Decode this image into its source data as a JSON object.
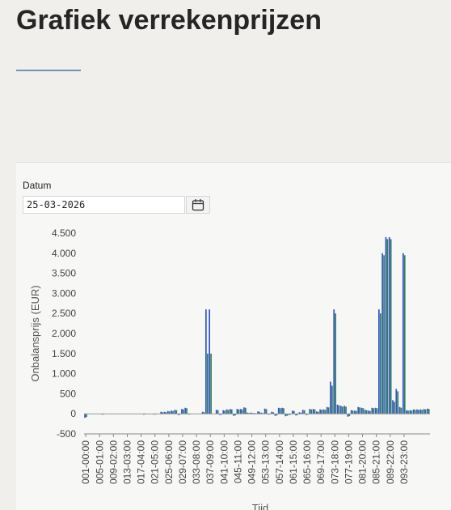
{
  "page": {
    "title": "Grafiek verrekenprijzen"
  },
  "date_filter": {
    "label": "Datum",
    "value": "25-03-2026",
    "icon": "calendar-icon"
  },
  "colors": {
    "primary": "#3554c8",
    "secondary": "#2e7d5e",
    "underline": "#6e93b8"
  },
  "chart_data": {
    "type": "bar",
    "title": "",
    "xlabel": "Tijd",
    "ylabel": "Onbalansprijs (EUR)",
    "ylim": [
      -500,
      4500
    ],
    "yticks": [
      -500,
      0,
      500,
      1000,
      1500,
      2000,
      2500,
      3000,
      3500,
      4000,
      4500
    ],
    "ytick_labels": [
      "-500",
      "0",
      "500",
      "1.000",
      "1.500",
      "2.000",
      "2.500",
      "3.000",
      "3.500",
      "4.000",
      "4.500"
    ],
    "xtick_labels": [
      "001-00:00",
      "005-01:00",
      "009-02:00",
      "013-03:00",
      "017-04:00",
      "021-05:00",
      "025-06:00",
      "029-07:00",
      "033-08:00",
      "037-09:00",
      "041-10:00",
      "045-11:00",
      "049-12:00",
      "053-13:00",
      "057-14:00",
      "061-15:00",
      "065-16:00",
      "069-17:00",
      "073-18:00",
      "077-19:00",
      "081-20:00",
      "085-21:00",
      "089-22:00",
      "093-23:00"
    ],
    "grid": false,
    "series": [
      {
        "values": [
          -100,
          0,
          0,
          0,
          0,
          -20,
          0,
          0,
          0,
          0,
          0,
          0,
          0,
          0,
          0,
          0,
          0,
          -20,
          0,
          0,
          -20,
          0,
          50,
          50,
          70,
          80,
          100,
          -30,
          120,
          150,
          -20,
          0,
          0,
          0,
          50,
          2600,
          2600,
          0,
          100,
          -30,
          90,
          110,
          120,
          -50,
          120,
          120,
          160,
          30,
          30,
          20,
          60,
          30,
          130,
          -20,
          50,
          -50,
          150,
          150,
          -60,
          -30,
          80,
          -40,
          40,
          100,
          -30,
          120,
          120,
          60,
          110,
          110,
          170,
          800,
          2600,
          230,
          200,
          200,
          -70,
          90,
          80,
          170,
          150,
          100,
          80,
          150,
          150,
          2600,
          4000,
          4400,
          4400,
          340,
          620,
          170,
          4000,
          90,
          90,
          110,
          110,
          110,
          120,
          130
        ]
      },
      {
        "values": [
          -80,
          0,
          0,
          0,
          0,
          -10,
          0,
          0,
          0,
          0,
          0,
          0,
          0,
          0,
          0,
          0,
          0,
          -10,
          0,
          0,
          -10,
          0,
          40,
          40,
          60,
          70,
          90,
          -20,
          110,
          140,
          -10,
          0,
          0,
          0,
          40,
          1500,
          1500,
          0,
          90,
          -20,
          80,
          100,
          110,
          -40,
          110,
          110,
          150,
          20,
          20,
          10,
          50,
          20,
          120,
          -10,
          40,
          -40,
          140,
          140,
          -50,
          -20,
          70,
          -30,
          30,
          90,
          -20,
          110,
          110,
          50,
          100,
          100,
          160,
          700,
          2500,
          210,
          180,
          180,
          -60,
          80,
          70,
          160,
          140,
          90,
          70,
          140,
          140,
          2500,
          3950,
          4350,
          4350,
          300,
          560,
          150,
          3950,
          80,
          80,
          100,
          100,
          100,
          110,
          120
        ]
      }
    ]
  }
}
